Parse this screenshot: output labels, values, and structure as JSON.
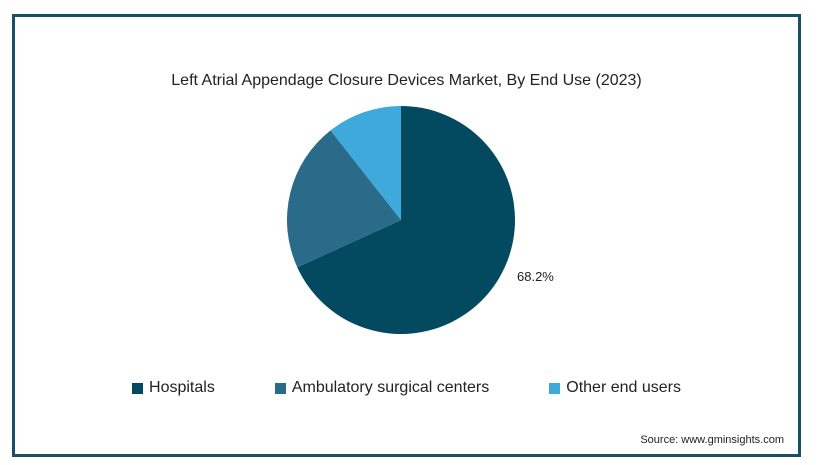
{
  "chart_data": {
    "type": "pie",
    "title": "Left Atrial Appendage Closure Devices Market, By End Use (2023)",
    "series": [
      {
        "name": "Hospitals",
        "value": 68.2,
        "color": "#034a60",
        "label": "68.2%"
      },
      {
        "name": "Ambulatory surgical centers",
        "value": 21.2,
        "color": "#2b6b8a"
      },
      {
        "name": "Other end users",
        "value": 10.6,
        "color": "#3fa9dc"
      }
    ],
    "legend_position": "bottom"
  },
  "source": "Source: www.gminsights.com"
}
